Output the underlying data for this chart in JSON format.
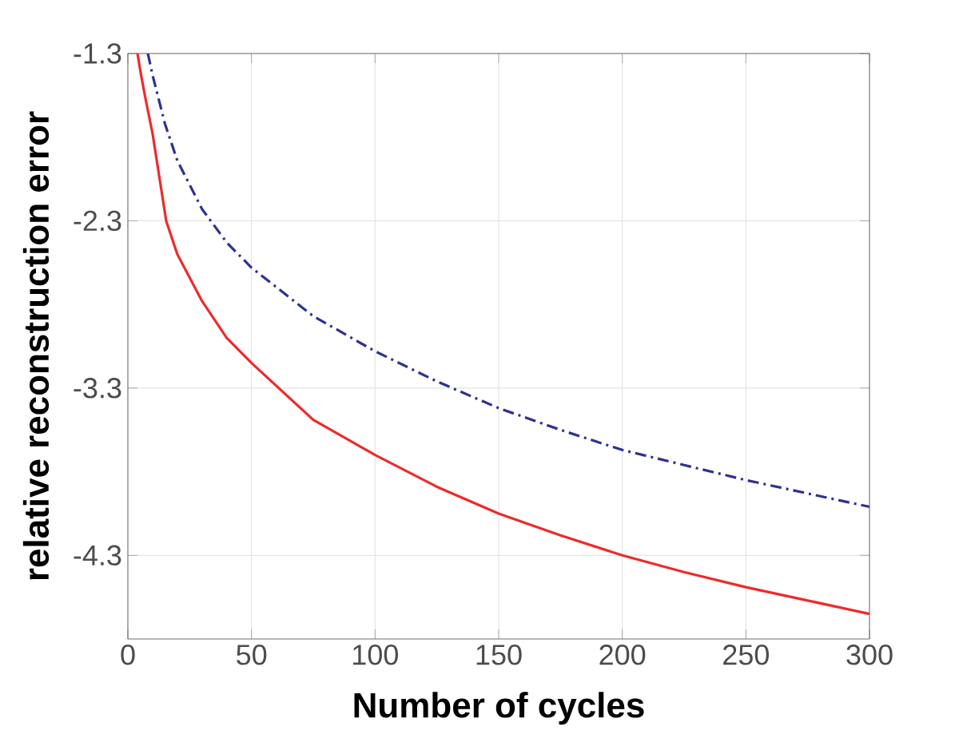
{
  "chart_data": {
    "type": "line",
    "xlabel": "Number of cycles",
    "ylabel": "relative reconstruction error",
    "xlim": [
      0,
      300
    ],
    "ylim": [
      -4.8,
      -1.3
    ],
    "xticks": [
      0,
      50,
      100,
      150,
      200,
      250,
      300
    ],
    "yticks": [
      -1.3,
      -2.3,
      -3.3,
      -4.3
    ],
    "grid": true,
    "series": [
      {
        "color": "#ee2a2a",
        "line_style": "solid",
        "x": [
          3.9,
          5,
          7,
          10,
          15.5,
          20,
          30,
          40,
          50,
          75,
          100,
          125,
          150,
          175,
          200,
          225,
          250,
          275,
          300
        ],
        "values": [
          -1.3,
          -1.4,
          -1.56,
          -1.78,
          -2.3,
          -2.5,
          -2.78,
          -3.0,
          -3.15,
          -3.49,
          -3.7,
          -3.89,
          -4.05,
          -4.18,
          -4.3,
          -4.4,
          -4.49,
          -4.57,
          -4.65
        ]
      },
      {
        "color": "#2e3192",
        "line_style": "dashdot",
        "x": [
          8.1,
          10,
          15,
          20,
          30,
          40,
          50,
          75,
          100,
          125,
          150,
          175,
          200,
          225,
          250,
          275,
          300
        ],
        "values": [
          -1.3,
          -1.43,
          -1.72,
          -1.94,
          -2.23,
          -2.43,
          -2.58,
          -2.87,
          -3.08,
          -3.26,
          -3.42,
          -3.55,
          -3.67,
          -3.76,
          -3.85,
          -3.93,
          -4.01
        ]
      }
    ]
  }
}
